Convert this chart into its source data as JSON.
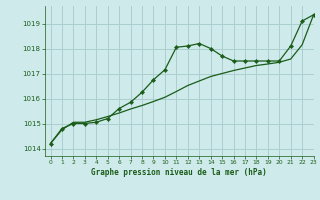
{
  "title": "Graphe pression niveau de la mer (hPa)",
  "bg_color": "#ceeaea",
  "grid_color": "#aacfcf",
  "line_color": "#1a5c1a",
  "xlim": [
    -0.5,
    23
  ],
  "ylim": [
    1013.7,
    1019.7
  ],
  "yticks": [
    1014,
    1015,
    1016,
    1017,
    1018,
    1019
  ],
  "xticks": [
    0,
    1,
    2,
    3,
    4,
    5,
    6,
    7,
    8,
    9,
    10,
    11,
    12,
    13,
    14,
    15,
    16,
    17,
    18,
    19,
    20,
    21,
    22,
    23
  ],
  "series1_x": [
    0,
    1,
    2,
    3,
    4,
    5,
    6,
    7,
    8,
    9,
    10,
    11,
    12,
    13,
    14,
    15,
    16,
    17,
    18,
    19,
    20,
    21,
    22,
    23
  ],
  "series1_y": [
    1014.2,
    1014.8,
    1015.0,
    1015.0,
    1015.05,
    1015.2,
    1015.6,
    1015.85,
    1016.25,
    1016.75,
    1017.15,
    1018.05,
    1018.1,
    1018.2,
    1018.0,
    1017.7,
    1017.5,
    1017.5,
    1017.5,
    1017.5,
    1017.5,
    1018.1,
    1019.1,
    1019.35
  ],
  "series2_x": [
    0,
    1,
    2,
    3,
    4,
    5,
    6,
    7,
    8,
    9,
    10,
    11,
    12,
    13,
    14,
    15,
    16,
    17,
    18,
    19,
    20,
    21,
    22,
    23
  ],
  "series2_y": [
    1014.2,
    1014.75,
    1015.05,
    1015.05,
    1015.15,
    1015.28,
    1015.42,
    1015.58,
    1015.72,
    1015.88,
    1016.05,
    1016.28,
    1016.52,
    1016.7,
    1016.88,
    1017.0,
    1017.12,
    1017.22,
    1017.32,
    1017.38,
    1017.45,
    1017.58,
    1018.15,
    1019.35
  ]
}
